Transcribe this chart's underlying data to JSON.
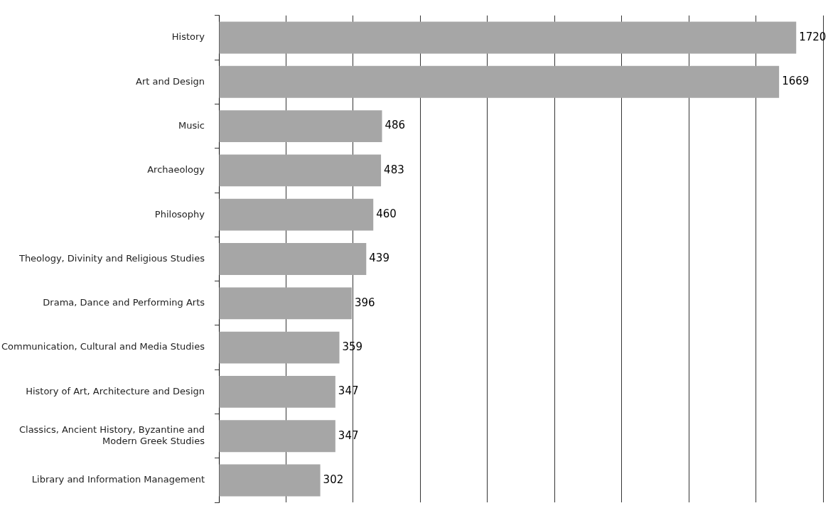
{
  "chart_data": {
    "type": "bar",
    "orientation": "horizontal",
    "categories": [
      "History",
      "Art and Design",
      "Music",
      "Archaeology",
      "Philosophy",
      "Theology, Divinity and Religious Studies",
      "Drama, Dance and Performing Arts",
      "Communication, Cultural and Media Studies",
      "History of Art, Architecture and Design",
      "Classics, Ancient History, Byzantine and Modern Greek Studies",
      "Library and Information Management"
    ],
    "values": [
      1720,
      1669,
      486,
      483,
      460,
      439,
      396,
      359,
      347,
      347,
      302
    ],
    "color": "#a6a6a6",
    "xlim": [
      0,
      1800
    ],
    "xticks": [
      {
        "value": 0,
        "label": null
      },
      {
        "value": 200,
        "label": null
      },
      {
        "value": 400,
        "label": null
      },
      {
        "value": 600,
        "label": null
      },
      {
        "value": 800,
        "label": null
      },
      {
        "value": 1000,
        "label": null
      },
      {
        "value": 1200,
        "label": null
      },
      {
        "value": 1400,
        "label": null
      },
      {
        "value": 1600,
        "label": null
      },
      {
        "value": 1800,
        "label": null
      }
    ],
    "tick_labels": "y",
    "grid": "x",
    "data_labels": true,
    "legend": false
  }
}
